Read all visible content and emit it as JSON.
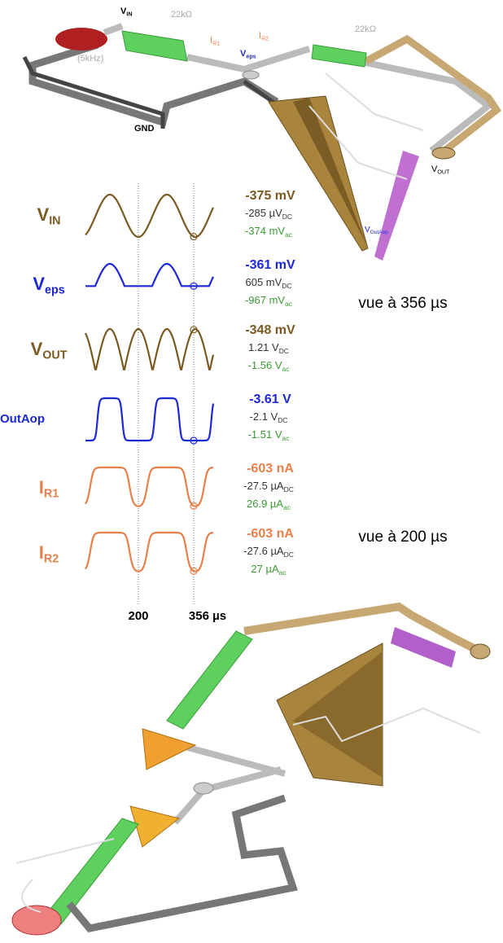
{
  "circuit_top": {
    "labels": [
      {
        "main": "V",
        "sub": "IN"
      },
      "22kΩ",
      "(5kHz)",
      {
        "main": "I",
        "sub": "R1"
      },
      {
        "main": "I",
        "sub": "R2"
      },
      {
        "main": "V",
        "sub": "eps"
      },
      "22kΩ",
      "GND",
      {
        "main": "V",
        "sub": "OUT"
      },
      {
        "main": "V",
        "sub": "OutAop"
      }
    ]
  },
  "signals": [
    {
      "name": {
        "main": "V",
        "sub": "IN"
      },
      "color": "#7b5a22",
      "reading": "-375 mV",
      "dc": {
        "value": "-285 µV",
        "sub": "DC"
      },
      "ac": {
        "value": "-374 mV",
        "sub": "ac"
      }
    },
    {
      "name": {
        "main": "V",
        "sub": "eps"
      },
      "color": "#1c28d8",
      "reading": "-361 mV",
      "dc": {
        "value": "605 mV",
        "sub": "DC"
      },
      "ac": {
        "value": "-967 mV",
        "sub": "ac"
      }
    },
    {
      "name": {
        "main": "V",
        "sub": "OUT"
      },
      "color": "#7b5a22",
      "reading": "-348 mV",
      "dc": {
        "value": "1.21 V",
        "sub": "DC"
      },
      "ac": {
        "value": "-1.56 V",
        "sub": "ac"
      }
    },
    {
      "name": "OutAop",
      "color": "#1c28d8",
      "reading": "-3.61 V",
      "dc": {
        "value": "-2.1 V",
        "sub": "DC"
      },
      "ac": {
        "value": "-1.51 V",
        "sub": "ac"
      }
    },
    {
      "name": {
        "main": "I",
        "sub": "R1"
      },
      "color": "#e8804a",
      "reading": "-603 nA",
      "dc": {
        "value": "-27.5 µA",
        "sub": "DC"
      },
      "ac": {
        "value": "26.9 µA",
        "sub": "ac"
      }
    },
    {
      "name": {
        "main": "I",
        "sub": "R2"
      },
      "color": "#e8804a",
      "reading": "-603 nA",
      "dc": {
        "value": "-27.6 µA",
        "sub": "DC"
      },
      "ac": {
        "value": "27 µA",
        "sub": "ac"
      }
    }
  ],
  "time_axis": [
    "200",
    "356 µs"
  ],
  "views": [
    "vue à 356 µs",
    "vue à 200 µs"
  ]
}
